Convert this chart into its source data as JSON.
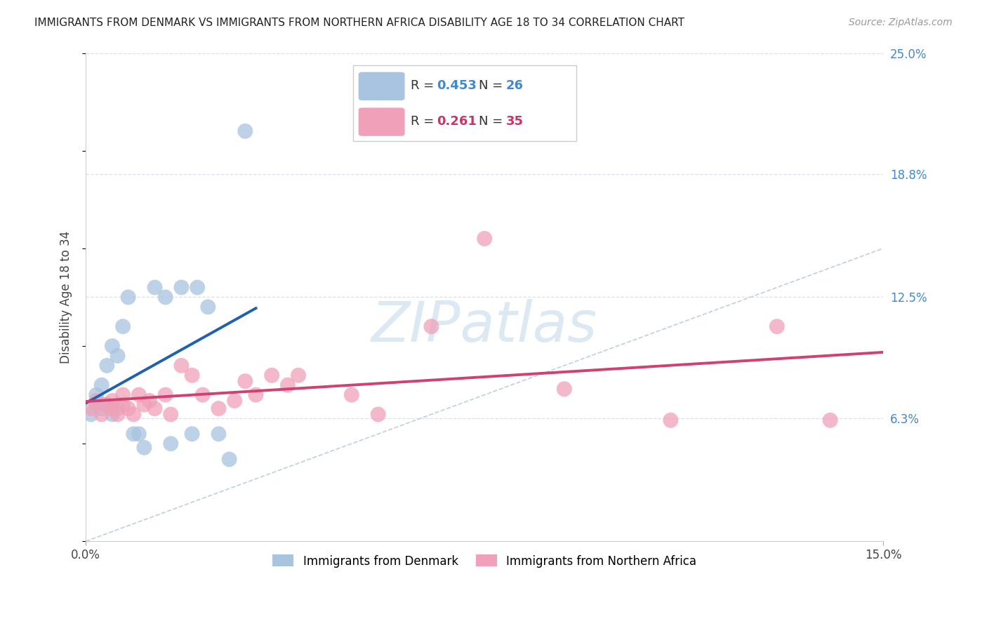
{
  "title": "IMMIGRANTS FROM DENMARK VS IMMIGRANTS FROM NORTHERN AFRICA DISABILITY AGE 18 TO 34 CORRELATION CHART",
  "source": "Source: ZipAtlas.com",
  "ylabel": "Disability Age 18 to 34",
  "xlim": [
    0.0,
    0.15
  ],
  "ylim": [
    0.0,
    0.25
  ],
  "ytick_labels_right": [
    "6.3%",
    "12.5%",
    "18.8%",
    "25.0%"
  ],
  "ytick_values_right": [
    0.063,
    0.125,
    0.188,
    0.25
  ],
  "legend_R1": "0.453",
  "legend_N1": "26",
  "legend_R2": "0.261",
  "legend_N2": "35",
  "legend_label1": "Immigrants from Denmark",
  "legend_label2": "Immigrants from Northern Africa",
  "color_denmark": "#a8c4e0",
  "color_denmark_edge": "#a8c4e0",
  "color_denmark_line": "#2060b0",
  "color_n_africa": "#f0a0b8",
  "color_n_africa_edge": "#f0a0b8",
  "color_n_africa_line": "#d04070",
  "color_diagonal": "#c0cfe0",
  "background_color": "#ffffff",
  "grid_color": "#d8e0ec",
  "watermark": "ZIPatlas",
  "denmark_x": [
    0.001,
    0.002,
    0.002,
    0.003,
    0.003,
    0.004,
    0.004,
    0.005,
    0.005,
    0.006,
    0.006,
    0.007,
    0.008,
    0.009,
    0.01,
    0.011,
    0.013,
    0.015,
    0.016,
    0.018,
    0.02,
    0.021,
    0.023,
    0.025,
    0.027,
    0.03
  ],
  "denmark_y": [
    0.065,
    0.075,
    0.07,
    0.08,
    0.068,
    0.09,
    0.07,
    0.1,
    0.065,
    0.095,
    0.068,
    0.11,
    0.125,
    0.055,
    0.055,
    0.048,
    0.13,
    0.125,
    0.05,
    0.13,
    0.055,
    0.13,
    0.12,
    0.055,
    0.042,
    0.21
  ],
  "n_africa_x": [
    0.001,
    0.002,
    0.003,
    0.004,
    0.005,
    0.005,
    0.006,
    0.007,
    0.007,
    0.008,
    0.009,
    0.01,
    0.011,
    0.012,
    0.013,
    0.015,
    0.016,
    0.018,
    0.02,
    0.022,
    0.025,
    0.028,
    0.03,
    0.032,
    0.035,
    0.038,
    0.04,
    0.05,
    0.055,
    0.065,
    0.075,
    0.09,
    0.11,
    0.13,
    0.14
  ],
  "n_africa_y": [
    0.068,
    0.072,
    0.065,
    0.07,
    0.068,
    0.072,
    0.065,
    0.07,
    0.075,
    0.068,
    0.065,
    0.075,
    0.07,
    0.072,
    0.068,
    0.075,
    0.065,
    0.09,
    0.085,
    0.075,
    0.068,
    0.072,
    0.082,
    0.075,
    0.085,
    0.08,
    0.085,
    0.075,
    0.065,
    0.11,
    0.155,
    0.078,
    0.062,
    0.11,
    0.062
  ]
}
